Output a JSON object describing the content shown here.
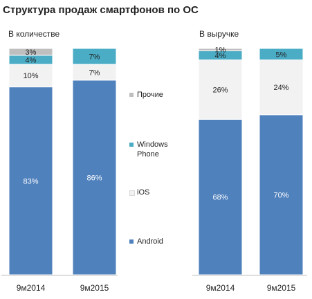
{
  "title": "Структура продаж смартфонов по ОС",
  "colors": {
    "Android": "#4f81bd",
    "iOS": "#f2f2f2",
    "Windows Phone": "#4bacc6",
    "Прочие": "#bfbfbf"
  },
  "legend": {
    "items": [
      {
        "label": "Прочие",
        "color": "#bfbfbf"
      },
      {
        "label": "Windows\nPhone",
        "color": "#4bacc6"
      },
      {
        "label": "iOS",
        "color": "#f2f2f2"
      },
      {
        "label": "Android",
        "color": "#4f81bd"
      }
    ]
  },
  "chart_data": [
    {
      "type": "bar",
      "stacked": true,
      "subtitle": "В количестве",
      "categories": [
        "9м2014",
        "9м2015"
      ],
      "series": [
        {
          "name": "Android",
          "values": [
            83,
            86
          ],
          "labels": [
            "83%",
            "86%"
          ]
        },
        {
          "name": "iOS",
          "values": [
            10,
            7
          ],
          "labels": [
            "10%",
            "7%"
          ]
        },
        {
          "name": "Windows Phone",
          "values": [
            4,
            7
          ],
          "labels": [
            "4%",
            "7%"
          ]
        },
        {
          "name": "Прочие",
          "values": [
            3,
            0
          ],
          "labels": [
            "3%",
            ""
          ]
        }
      ],
      "ylim": [
        0,
        100
      ]
    },
    {
      "type": "bar",
      "stacked": true,
      "subtitle": "В выручке",
      "categories": [
        "9м2014",
        "9м2015"
      ],
      "series": [
        {
          "name": "Android",
          "values": [
            68,
            70
          ],
          "labels": [
            "68%",
            "70%"
          ]
        },
        {
          "name": "iOS",
          "values": [
            26,
            24
          ],
          "labels": [
            "26%",
            "24%"
          ]
        },
        {
          "name": "Windows Phone",
          "values": [
            4,
            5
          ],
          "labels": [
            "4%",
            "5%"
          ]
        },
        {
          "name": "Прочие",
          "values": [
            1,
            0
          ],
          "labels": [
            "1%",
            ""
          ]
        }
      ],
      "ylim": [
        0,
        100
      ]
    }
  ]
}
